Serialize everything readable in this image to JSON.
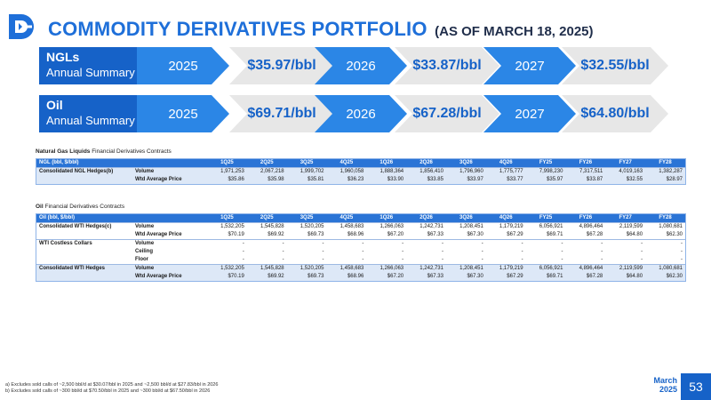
{
  "header": {
    "title": "COMMODITY DERIVATIVES PORTFOLIO",
    "subtitle": "(AS OF MARCH 18, 2025)"
  },
  "summary": {
    "ngl": {
      "name": "NGLs",
      "sub": "Annual Summary",
      "years": [
        "2025",
        "2026",
        "2027"
      ],
      "prices": [
        "$35.97/bbl",
        "$33.87/bbl",
        "$32.55/bbl"
      ]
    },
    "oil": {
      "name": "Oil",
      "sub": "Annual Summary",
      "years": [
        "2025",
        "2026",
        "2027"
      ],
      "prices": [
        "$69.71/bbl",
        "$67.28/bbl",
        "$64.80/bbl"
      ]
    }
  },
  "ngl_table": {
    "caption_bold": "Natural Gas Liquids",
    "caption_rest": " Financial Derivatives Contracts",
    "header_label": "NGL (bbl, $/bbl)",
    "columns": [
      "1Q25",
      "2Q25",
      "3Q25",
      "4Q25",
      "1Q26",
      "2Q26",
      "3Q26",
      "4Q26",
      "FY25",
      "FY26",
      "FY27",
      "FY28"
    ],
    "rows": [
      {
        "group": "Consolidated NGL Hedges(b)",
        "metric": "Volume",
        "values": [
          "1,971,253",
          "2,067,218",
          "1,999,702",
          "1,960,058",
          "1,888,364",
          "1,856,410",
          "1,796,960",
          "1,775,777",
          "7,998,230",
          "7,317,511",
          "4,019,163",
          "1,382,287"
        ]
      },
      {
        "group": "",
        "metric": "Wtd Average Price",
        "values": [
          "$35.86",
          "$35.98",
          "$35.81",
          "$36.23",
          "$33.90",
          "$33.85",
          "$33.97",
          "$33.77",
          "$35.97",
          "$33.87",
          "$32.55",
          "$28.97"
        ]
      }
    ]
  },
  "oil_table": {
    "caption_bold": "Oil",
    "caption_rest": " Financial Derivatives Contracts",
    "header_label": "Oil (bbl, $/bbl)",
    "columns": [
      "1Q25",
      "2Q25",
      "3Q25",
      "4Q25",
      "1Q26",
      "2Q26",
      "3Q26",
      "4Q26",
      "FY25",
      "FY26",
      "FY27",
      "FY28"
    ],
    "rows": [
      {
        "group": "Consolidated WTI Hedges(c)",
        "metric": "Volume",
        "values": [
          "1,532,205",
          "1,545,828",
          "1,520,205",
          "1,458,683",
          "1,266,063",
          "1,242,731",
          "1,208,451",
          "1,179,219",
          "6,056,921",
          "4,896,464",
          "2,119,599",
          "1,080,681"
        ]
      },
      {
        "group": "",
        "metric": "Wtd Average Price",
        "values": [
          "$70.19",
          "$69.92",
          "$69.73",
          "$68.96",
          "$67.20",
          "$67.33",
          "$67.30",
          "$67.29",
          "$69.71",
          "$67.28",
          "$64.80",
          "$62.30"
        ]
      },
      {
        "group": "WTI Costless Collars",
        "metric": "Volume",
        "values": [
          "-",
          "-",
          "-",
          "-",
          "-",
          "-",
          "-",
          "-",
          "-",
          "-",
          "-",
          "-"
        ]
      },
      {
        "group": "",
        "metric": "Ceiling",
        "values": [
          "-",
          "-",
          "-",
          "-",
          "-",
          "-",
          "-",
          "-",
          "-",
          "-",
          "-",
          "-"
        ]
      },
      {
        "group": "",
        "metric": "Floor",
        "values": [
          "-",
          "-",
          "-",
          "-",
          "-",
          "-",
          "-",
          "-",
          "-",
          "-",
          "-",
          "-"
        ]
      },
      {
        "group": "Consolidated WTI Hedges",
        "metric": "Volume",
        "values": [
          "1,532,205",
          "1,545,828",
          "1,520,205",
          "1,458,683",
          "1,266,063",
          "1,242,731",
          "1,208,451",
          "1,179,219",
          "6,056,921",
          "4,896,464",
          "2,119,599",
          "1,080,681"
        ]
      },
      {
        "group": "",
        "metric": "Wtd Average Price",
        "values": [
          "$70.19",
          "$69.92",
          "$69.73",
          "$68.96",
          "$67.20",
          "$67.33",
          "$67.30",
          "$67.29",
          "$69.71",
          "$67.28",
          "$64.80",
          "$62.30"
        ]
      }
    ]
  },
  "footnotes": [
    "a) Excludes sold calls of ~2,500 bbl/d at $30.07/bbl in 2025 and ~2,500 bbl/d at $27.83/bbl in 2026",
    "b) Excludes sold calls of ~300 bbl/d at $70.50/bbl in 2025 and ~300 bbl/d at $67.50/bbl in 2026"
  ],
  "page": {
    "month": "March",
    "year": "2025",
    "number": "53"
  },
  "colors": {
    "brand_blue": "#1662c8",
    "chevron_blue": "#2b86e6",
    "chevron_grey": "#e7e7e7",
    "table_header": "#2a74d6",
    "row_shade": "#dde8f7"
  },
  "icons": {
    "logo": "company-logo-icon"
  }
}
